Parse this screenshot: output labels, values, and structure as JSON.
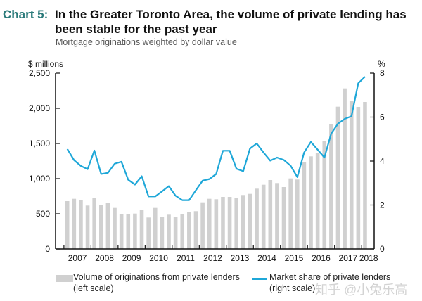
{
  "header": {
    "chart_number": "Chart 5:",
    "title": "In the Greater Toronto Area, the volume of private lending has been stable for the past year",
    "subtitle": "Mortgage originations weighted by dollar value"
  },
  "watermark": "知乎 @小兔乐高",
  "chart_data": {
    "type": "bar+line",
    "title": "In the Greater Toronto Area, the volume of private lending has been stable for the past year",
    "subtitle": "Mortgage originations weighted by dollar value",
    "left_axis": {
      "label": "$ millions",
      "ylim": [
        0,
        2500
      ],
      "ticks": [
        "0",
        "500",
        "1,000",
        "1,500",
        "2,000",
        "2,500"
      ]
    },
    "right_axis": {
      "label": "%",
      "ylim": [
        0,
        8
      ],
      "ticks": [
        "0",
        "2",
        "4",
        "6",
        "8"
      ]
    },
    "x_ticks": [
      "2007",
      "2008",
      "2009",
      "2010",
      "2011",
      "2012",
      "2013",
      "2014",
      "2015",
      "2016",
      "2017",
      "2018"
    ],
    "x": [
      "2007Q1",
      "2007Q2",
      "2007Q3",
      "2007Q4",
      "2008Q1",
      "2008Q2",
      "2008Q3",
      "2008Q4",
      "2009Q1",
      "2009Q2",
      "2009Q3",
      "2009Q4",
      "2010Q1",
      "2010Q2",
      "2010Q3",
      "2010Q4",
      "2011Q1",
      "2011Q2",
      "2011Q3",
      "2011Q4",
      "2012Q1",
      "2012Q2",
      "2012Q3",
      "2012Q4",
      "2013Q1",
      "2013Q2",
      "2013Q3",
      "2013Q4",
      "2014Q1",
      "2014Q2",
      "2014Q3",
      "2014Q4",
      "2015Q1",
      "2015Q2",
      "2015Q3",
      "2015Q4",
      "2016Q1",
      "2016Q2",
      "2016Q3",
      "2016Q4",
      "2017Q1",
      "2017Q2",
      "2017Q3",
      "2017Q4",
      "2018Q1"
    ],
    "grid": false,
    "legend_placement": "bottom",
    "series": [
      {
        "name": "Volume of originations from private lenders",
        "legend_sub": "(left scale)",
        "type": "bar",
        "axis": "left",
        "color": "#d0d0d0",
        "values": [
          680,
          713,
          697,
          617,
          723,
          627,
          657,
          583,
          497,
          497,
          503,
          553,
          447,
          583,
          453,
          487,
          457,
          493,
          520,
          537,
          663,
          713,
          707,
          740,
          740,
          720,
          767,
          783,
          857,
          913,
          980,
          937,
          880,
          1003,
          987,
          1230,
          1317,
          1360,
          1540,
          1773,
          2023,
          2283,
          2103,
          2020,
          2090
        ]
      },
      {
        "name": "Market share of private lenders",
        "legend_sub": "(right scale)",
        "type": "line",
        "axis": "right",
        "color": "#1ea7d8",
        "values": [
          4.55,
          4.04,
          3.78,
          3.63,
          4.48,
          3.41,
          3.46,
          3.88,
          3.97,
          3.15,
          2.93,
          3.31,
          2.39,
          2.39,
          2.62,
          2.86,
          2.42,
          2.22,
          2.22,
          2.67,
          3.11,
          3.18,
          3.41,
          4.47,
          4.47,
          3.65,
          3.54,
          4.57,
          4.8,
          4.39,
          4.02,
          4.16,
          4.05,
          3.79,
          3.27,
          4.39,
          4.87,
          4.52,
          4.16,
          5.25,
          5.7,
          5.92,
          6.04,
          7.54,
          7.84
        ]
      }
    ]
  }
}
